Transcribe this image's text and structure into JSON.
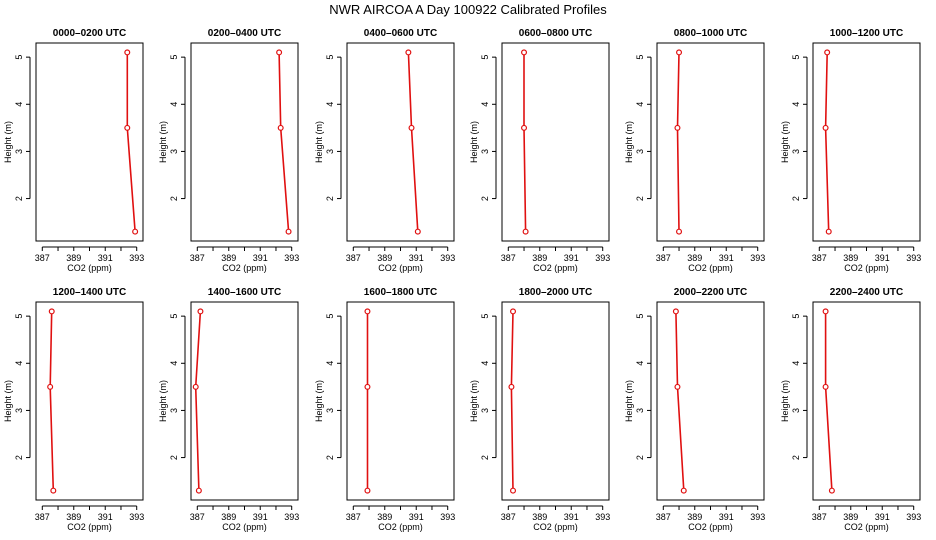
{
  "chart_data": {
    "type": "line",
    "title": "NWR AIRCOA A  Day 100922  Calibrated Profiles",
    "xlabel": "CO2 (ppm)",
    "ylabel": "Height (m)",
    "xlim": [
      386.6,
      393.4
    ],
    "ylim": [
      1.1,
      5.3
    ],
    "xticks": [
      387,
      388,
      389,
      390,
      391,
      392,
      393
    ],
    "xtick_labels": [
      "387",
      "",
      "389",
      "",
      "391",
      "",
      "393"
    ],
    "yticks": [
      2,
      3,
      4,
      5
    ],
    "ytick_labels": [
      "2",
      "3",
      "4",
      "5"
    ],
    "line_color": "#e01010",
    "marker_color": "#e01010",
    "panels": [
      {
        "title": "0000–0200 UTC",
        "points": [
          {
            "x": 392.4,
            "y": 5.1
          },
          {
            "x": 392.4,
            "y": 3.5
          },
          {
            "x": 392.9,
            "y": 1.3
          }
        ]
      },
      {
        "title": "0200–0400 UTC",
        "points": [
          {
            "x": 392.2,
            "y": 5.1
          },
          {
            "x": 392.3,
            "y": 3.5
          },
          {
            "x": 392.8,
            "y": 1.3
          }
        ]
      },
      {
        "title": "0400–0600 UTC",
        "points": [
          {
            "x": 390.5,
            "y": 5.1
          },
          {
            "x": 390.7,
            "y": 3.5
          },
          {
            "x": 391.1,
            "y": 1.3
          }
        ]
      },
      {
        "title": "0600–0800 UTC",
        "points": [
          {
            "x": 388.0,
            "y": 5.1
          },
          {
            "x": 388.0,
            "y": 3.5
          },
          {
            "x": 388.1,
            "y": 1.3
          }
        ]
      },
      {
        "title": "0800–1000 UTC",
        "points": [
          {
            "x": 388.0,
            "y": 5.1
          },
          {
            "x": 387.9,
            "y": 3.5
          },
          {
            "x": 388.0,
            "y": 1.3
          }
        ]
      },
      {
        "title": "1000–1200 UTC",
        "points": [
          {
            "x": 387.5,
            "y": 5.1
          },
          {
            "x": 387.4,
            "y": 3.5
          },
          {
            "x": 387.6,
            "y": 1.3
          }
        ]
      },
      {
        "title": "1200–1400 UTC",
        "points": [
          {
            "x": 387.6,
            "y": 5.1
          },
          {
            "x": 387.5,
            "y": 3.5
          },
          {
            "x": 387.7,
            "y": 1.3
          }
        ]
      },
      {
        "title": "1400–1600 UTC",
        "points": [
          {
            "x": 387.2,
            "y": 5.1
          },
          {
            "x": 386.9,
            "y": 3.5
          },
          {
            "x": 387.1,
            "y": 1.3
          }
        ]
      },
      {
        "title": "1600–1800 UTC",
        "points": [
          {
            "x": 387.9,
            "y": 5.1
          },
          {
            "x": 387.9,
            "y": 3.5
          },
          {
            "x": 387.9,
            "y": 1.3
          }
        ]
      },
      {
        "title": "1800–2000 UTC",
        "points": [
          {
            "x": 387.3,
            "y": 5.1
          },
          {
            "x": 387.2,
            "y": 3.5
          },
          {
            "x": 387.3,
            "y": 1.3
          }
        ]
      },
      {
        "title": "2000–2200 UTC",
        "points": [
          {
            "x": 387.8,
            "y": 5.1
          },
          {
            "x": 387.9,
            "y": 3.5
          },
          {
            "x": 388.3,
            "y": 1.3
          }
        ]
      },
      {
        "title": "2200–2400 UTC",
        "points": [
          {
            "x": 387.4,
            "y": 5.1
          },
          {
            "x": 387.4,
            "y": 3.5
          },
          {
            "x": 387.8,
            "y": 1.3
          }
        ]
      }
    ]
  }
}
